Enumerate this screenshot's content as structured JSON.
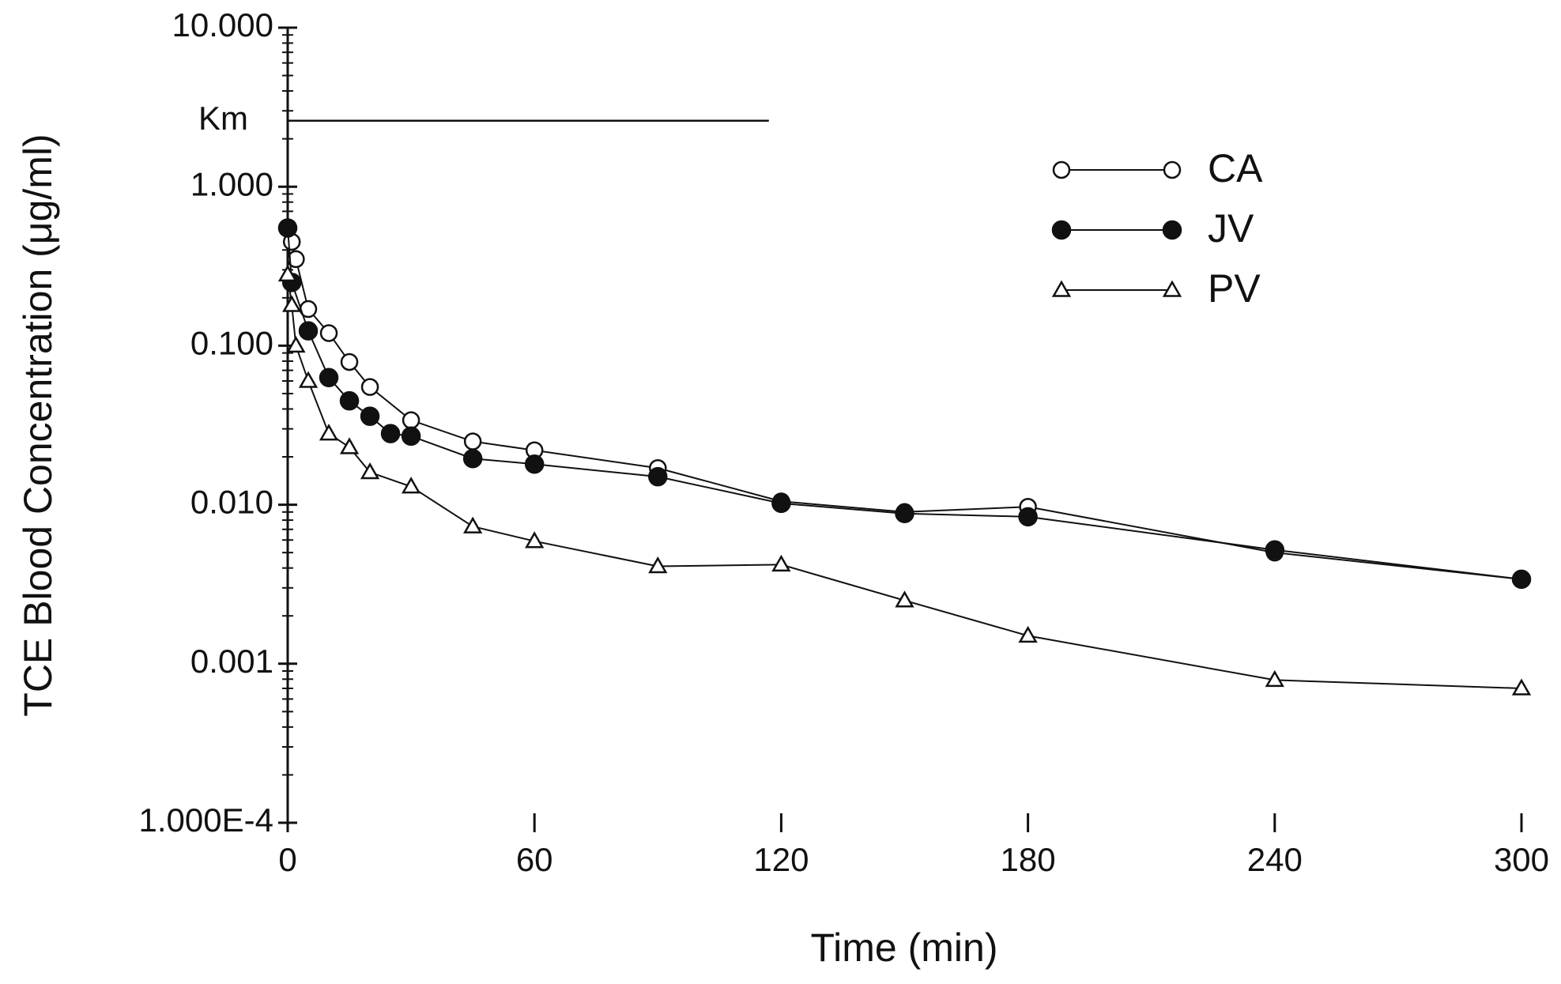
{
  "chart_data": {
    "type": "line",
    "x_label": "Time (min)",
    "y_label": "TCE Blood Concentration (μg/ml)",
    "xlim": [
      0,
      300
    ],
    "xticks": [
      0,
      60,
      120,
      180,
      240,
      300
    ],
    "ylim": [
      0.0001,
      10
    ],
    "log_y": true,
    "yticks": [
      {
        "value": 0.0001,
        "label": "1.000E-4"
      },
      {
        "value": 0.001,
        "label": "0.001"
      },
      {
        "value": 0.01,
        "label": "0.010"
      },
      {
        "value": 0.1,
        "label": "0.100"
      },
      {
        "value": 1,
        "label": "1.000"
      },
      {
        "value": 10,
        "label": "10.000"
      }
    ],
    "grid": false,
    "legend": "upper right",
    "reference_line": {
      "label": "Km",
      "value": 2.6,
      "x_end": 117
    },
    "series": [
      {
        "name": "CA",
        "color": "#111111",
        "marker": "open-circle",
        "x": [
          0,
          1,
          2,
          5,
          10,
          15,
          20,
          30,
          45,
          60,
          90,
          120,
          150,
          180,
          240,
          300
        ],
        "values": [
          0.55,
          0.45,
          0.35,
          0.17,
          0.12,
          0.079,
          0.055,
          0.034,
          0.025,
          0.022,
          0.017,
          0.0105,
          0.009,
          0.0097,
          0.005,
          0.0034
        ]
      },
      {
        "name": "JV",
        "color": "#111111",
        "marker": "filled-circle",
        "x": [
          0,
          1,
          5,
          10,
          15,
          20,
          25,
          30,
          45,
          60,
          90,
          120,
          150,
          180,
          240,
          300
        ],
        "values": [
          0.55,
          0.25,
          0.124,
          0.063,
          0.045,
          0.036,
          0.028,
          0.027,
          0.0195,
          0.018,
          0.015,
          0.0102,
          0.0088,
          0.0084,
          0.0052,
          0.0034
        ]
      },
      {
        "name": "PV",
        "color": "#111111",
        "marker": "open-triangle",
        "x": [
          0,
          1,
          2,
          5,
          10,
          15,
          20,
          30,
          45,
          60,
          90,
          120,
          150,
          180,
          240,
          300
        ],
        "values": [
          0.28,
          0.18,
          0.1,
          0.06,
          0.028,
          0.023,
          0.016,
          0.013,
          0.0073,
          0.0059,
          0.0041,
          0.0042,
          0.0025,
          0.0015,
          0.00079,
          0.0007
        ]
      }
    ]
  }
}
